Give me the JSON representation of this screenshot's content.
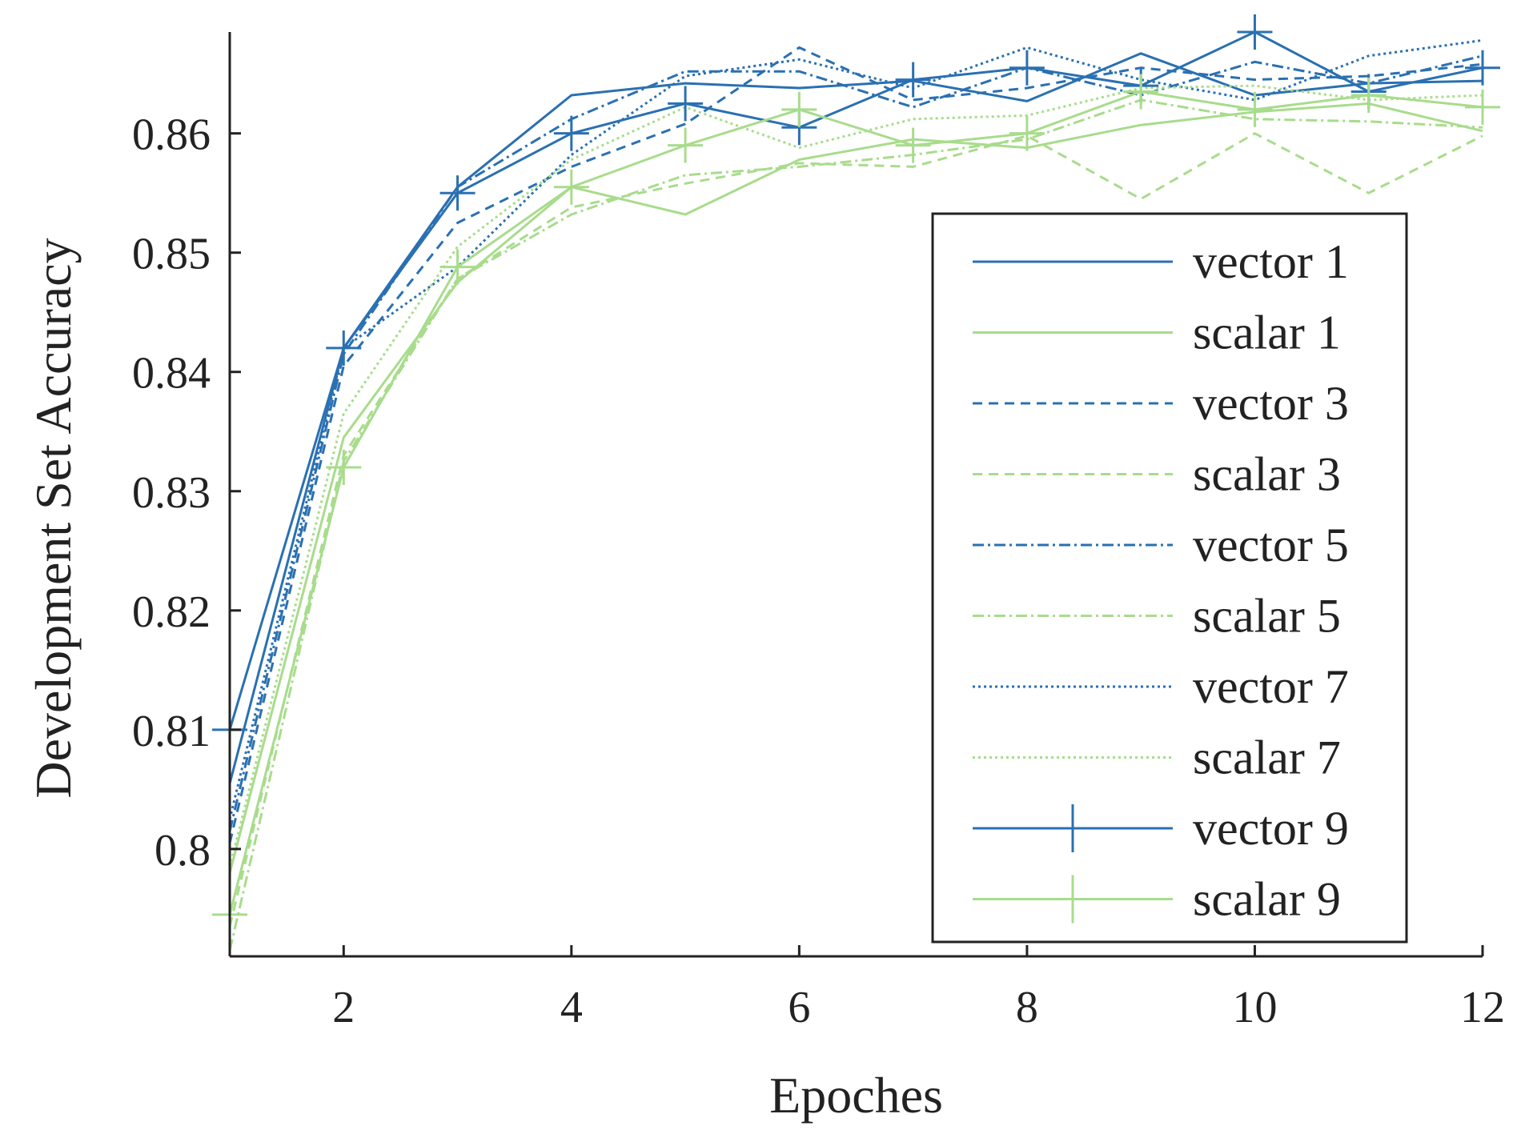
{
  "chart_data": {
    "type": "line",
    "title": "",
    "xlabel": "Epoches",
    "ylabel": "Development Set Accuracy",
    "xlim": [
      1,
      12
    ],
    "ylim": [
      0.791,
      0.8685
    ],
    "x": [
      1,
      2,
      3,
      4,
      5,
      6,
      7,
      8,
      9,
      10,
      11,
      12
    ],
    "xticks": [
      2,
      4,
      6,
      8,
      10,
      12
    ],
    "xtick_labels": [
      "2",
      "4",
      "6",
      "8",
      "10",
      "12"
    ],
    "yticks": [
      0.8,
      0.81,
      0.82,
      0.83,
      0.84,
      0.85,
      0.86
    ],
    "ytick_labels": [
      "0.8",
      "0.81",
      "0.82",
      "0.83",
      "0.84",
      "0.85",
      "0.86"
    ],
    "grid": false,
    "legend_position": "bottom-right",
    "colors": {
      "vector": "#2a70b2",
      "scalar": "#a8dc8c"
    },
    "series": [
      {
        "name": "vector 1",
        "color": "#2a70b2",
        "style": "solid",
        "marker": "none",
        "values": [
          0.8055,
          0.842,
          0.8555,
          0.8632,
          0.8642,
          0.8638,
          0.8644,
          0.8627,
          0.8667,
          0.8632,
          0.8642,
          0.8644
        ]
      },
      {
        "name": "scalar 1",
        "color": "#a8dc8c",
        "style": "solid",
        "marker": "none",
        "values": [
          0.798,
          0.8345,
          0.8475,
          0.8555,
          0.8532,
          0.8578,
          0.8595,
          0.8588,
          0.8607,
          0.8618,
          0.8625,
          0.8602
        ]
      },
      {
        "name": "vector 3",
        "color": "#2a70b2",
        "style": "dashed",
        "marker": "none",
        "values": [
          0.8005,
          0.8405,
          0.8525,
          0.8572,
          0.8608,
          0.8672,
          0.8628,
          0.8638,
          0.8655,
          0.8645,
          0.8648,
          0.8658
        ]
      },
      {
        "name": "scalar 3",
        "color": "#a8dc8c",
        "style": "dashed",
        "marker": "none",
        "values": [
          0.7935,
          0.833,
          0.8478,
          0.8538,
          0.8558,
          0.8575,
          0.8572,
          0.8598,
          0.8545,
          0.86,
          0.855,
          0.8598
        ]
      },
      {
        "name": "vector 5",
        "color": "#2a70b2",
        "style": "dashdot",
        "marker": "none",
        "values": [
          0.8015,
          0.8415,
          0.8555,
          0.8612,
          0.8652,
          0.8652,
          0.8622,
          0.8655,
          0.8632,
          0.866,
          0.8642,
          0.8665
        ]
      },
      {
        "name": "scalar 5",
        "color": "#a8dc8c",
        "style": "dashdot",
        "marker": "none",
        "values": [
          0.7915,
          0.8325,
          0.8478,
          0.8532,
          0.8565,
          0.8572,
          0.8582,
          0.8595,
          0.8628,
          0.8612,
          0.861,
          0.8605
        ]
      },
      {
        "name": "vector 7",
        "color": "#2a70b2",
        "style": "dotted",
        "marker": "none",
        "values": [
          0.8025,
          0.842,
          0.8488,
          0.8582,
          0.8648,
          0.8662,
          0.8638,
          0.8672,
          0.8645,
          0.8628,
          0.8665,
          0.8678
        ]
      },
      {
        "name": "scalar 7",
        "color": "#a8dc8c",
        "style": "dotted",
        "marker": "none",
        "values": [
          0.7985,
          0.8365,
          0.8505,
          0.8578,
          0.8622,
          0.8588,
          0.8612,
          0.8615,
          0.8638,
          0.864,
          0.8628,
          0.8632
        ]
      },
      {
        "name": "vector 9",
        "color": "#2a70b2",
        "style": "solid",
        "marker": "plus",
        "values": [
          0.81,
          0.842,
          0.855,
          0.86,
          0.8625,
          0.8605,
          0.8645,
          0.8655,
          0.864,
          0.8685,
          0.8635,
          0.8655
        ]
      },
      {
        "name": "scalar 9",
        "color": "#a8dc8c",
        "style": "solid",
        "marker": "plus",
        "values": [
          0.7945,
          0.832,
          0.8488,
          0.8555,
          0.859,
          0.862,
          0.859,
          0.86,
          0.8635,
          0.862,
          0.8632,
          0.8622
        ]
      }
    ]
  }
}
